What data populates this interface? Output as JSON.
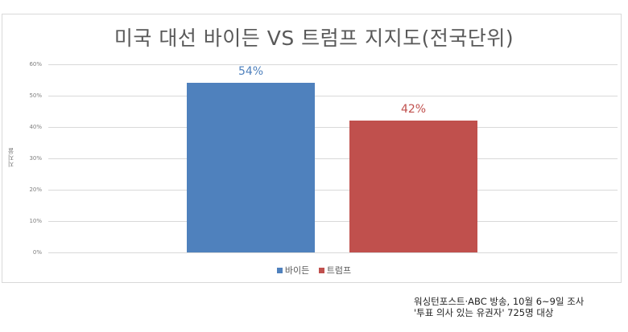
{
  "chart_data": {
    "type": "bar",
    "title": "미국 대선 바이든 VS 트럼프 지지도(전국단위)",
    "categories": [
      "바이든",
      "트럼프"
    ],
    "series": [
      {
        "name": "바이든",
        "values": [
          54
        ],
        "color": "#4f81bd"
      },
      {
        "name": "트럼프",
        "values": [
          42
        ],
        "color": "#c0504d"
      }
    ],
    "values": [
      54,
      42
    ],
    "data_labels": [
      "54%",
      "42%"
    ],
    "xlabel": "",
    "ylabel": "지지율",
    "ylim": [
      0,
      60
    ],
    "yticks": [
      "0%",
      "10%",
      "20%",
      "30%",
      "40%",
      "50%",
      "60%"
    ],
    "grid": true,
    "legend_position": "bottom"
  },
  "legend": [
    {
      "label": "바이든",
      "color": "#4f81bd"
    },
    {
      "label": "트럼프",
      "color": "#c0504d"
    }
  ],
  "source": {
    "line1": "워싱턴포스트·ABC 방송, 10월 6~9일 조사",
    "line2": "'투표 의사 있는 유권자' 725명 대상"
  }
}
